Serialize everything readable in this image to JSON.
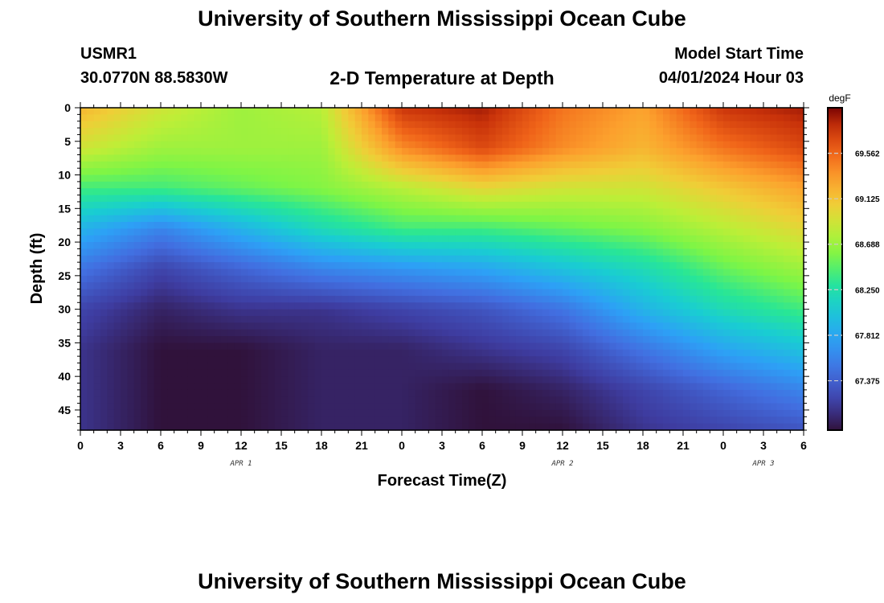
{
  "header": {
    "title": "University of Southern Mississippi Ocean Cube",
    "station_id": "USMR1",
    "coords": "30.0770N  88.5830W",
    "plot_title": "2-D Temperature at Depth",
    "model_start_label": "Model Start Time",
    "model_start_value": "04/01/2024 Hour 03"
  },
  "footer": {
    "title": "University of Southern Mississippi Ocean Cube"
  },
  "chart_data": {
    "type": "heatmap",
    "title": "2-D Temperature at Depth",
    "xlabel": "Forecast Time(Z)",
    "ylabel": "Depth (ft)",
    "xlim": [
      0,
      54
    ],
    "ylim": [
      0,
      48
    ],
    "y_inverted": true,
    "x_ticks": [
      0,
      3,
      6,
      9,
      12,
      15,
      18,
      21,
      24,
      27,
      30,
      33,
      36,
      39,
      42,
      45,
      48,
      51,
      54
    ],
    "x_tick_labels": [
      "0",
      "3",
      "6",
      "9",
      "12",
      "15",
      "18",
      "21",
      "0",
      "3",
      "6",
      "9",
      "12",
      "15",
      "18",
      "21",
      "0",
      "3",
      "6"
    ],
    "date_labels": [
      {
        "x": 12,
        "text": "APR 1"
      },
      {
        "x": 36,
        "text": "APR 2"
      },
      {
        "x": 51,
        "text": "APR 3"
      }
    ],
    "y_ticks": [
      0,
      5,
      10,
      15,
      20,
      25,
      30,
      35,
      40,
      45
    ],
    "y_tick_labels": [
      "0",
      "5",
      "10",
      "15",
      "20",
      "25",
      "30",
      "35",
      "40",
      "45"
    ],
    "colorbar": {
      "unit": "degF",
      "min": 66.9,
      "max": 70.0,
      "ticks": [
        67.375,
        67.812,
        68.25,
        68.688,
        69.125,
        69.562
      ],
      "tick_labels": [
        "67.375",
        "67.812",
        "68.250",
        "68.688",
        "69.125",
        "69.562"
      ]
    },
    "grid_x": [
      0,
      6,
      12,
      18,
      24,
      30,
      36,
      42,
      48,
      54
    ],
    "grid_depth": [
      0,
      6,
      12,
      18,
      24,
      30,
      36,
      42,
      48
    ],
    "values": [
      [
        69.2,
        68.9,
        68.7,
        68.8,
        69.8,
        69.9,
        69.5,
        69.3,
        69.8,
        69.9
      ],
      [
        68.9,
        68.7,
        68.7,
        68.7,
        69.4,
        69.7,
        69.4,
        69.2,
        69.5,
        69.7
      ],
      [
        68.4,
        68.4,
        68.5,
        68.6,
        68.8,
        69.0,
        68.9,
        68.9,
        69.1,
        69.3
      ],
      [
        67.9,
        67.6,
        67.9,
        68.2,
        68.4,
        68.4,
        68.5,
        68.6,
        68.8,
        69.0
      ],
      [
        67.5,
        67.2,
        67.4,
        67.6,
        67.7,
        67.8,
        68.0,
        68.2,
        68.5,
        68.7
      ],
      [
        67.2,
        67.0,
        67.1,
        67.1,
        67.2,
        67.3,
        67.5,
        67.9,
        68.2,
        68.4
      ],
      [
        67.1,
        66.9,
        66.9,
        67.0,
        67.0,
        67.1,
        67.2,
        67.5,
        67.8,
        68.0
      ],
      [
        67.1,
        66.9,
        66.9,
        67.0,
        67.0,
        66.9,
        67.0,
        67.2,
        67.4,
        67.6
      ],
      [
        67.1,
        66.9,
        66.9,
        67.0,
        67.0,
        66.9,
        66.9,
        67.1,
        67.2,
        67.3
      ]
    ]
  }
}
